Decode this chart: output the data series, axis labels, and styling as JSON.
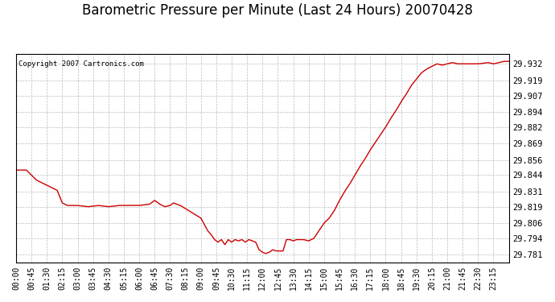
{
  "title": "Barometric Pressure per Minute (Last 24 Hours) 20070428",
  "copyright": "Copyright 2007 Cartronics.com",
  "line_color": "#cc0000",
  "background_color": "#ffffff",
  "plot_bg_color": "#ffffff",
  "grid_color": "#bbbbbb",
  "title_fontsize": 12,
  "yticks": [
    29.781,
    29.794,
    29.806,
    29.819,
    29.831,
    29.844,
    29.856,
    29.869,
    29.882,
    29.894,
    29.907,
    29.919,
    29.932
  ],
  "ylim": [
    29.775,
    29.94
  ],
  "xtick_labels": [
    "00:00",
    "00:45",
    "01:30",
    "02:15",
    "03:00",
    "03:45",
    "04:30",
    "05:15",
    "06:00",
    "06:45",
    "07:30",
    "08:15",
    "09:00",
    "09:45",
    "10:30",
    "11:15",
    "12:00",
    "12:45",
    "13:30",
    "14:15",
    "15:00",
    "15:45",
    "16:30",
    "17:15",
    "18:00",
    "18:45",
    "19:30",
    "20:15",
    "21:00",
    "21:45",
    "22:30",
    "23:15"
  ],
  "keypoints_t": [
    0,
    30,
    60,
    90,
    120,
    135,
    150,
    180,
    210,
    240,
    270,
    300,
    330,
    360,
    390,
    405,
    420,
    435,
    450,
    460,
    480,
    510,
    540,
    560,
    570,
    580,
    590,
    600,
    610,
    620,
    630,
    640,
    650,
    660,
    670,
    680,
    690,
    700,
    710,
    720,
    730,
    740,
    745,
    750,
    760,
    765,
    770,
    780,
    790,
    800,
    810,
    820,
    830,
    840,
    855,
    870,
    885,
    900,
    915,
    930,
    945,
    960,
    975,
    990,
    1005,
    1020,
    1035,
    1050,
    1065,
    1080,
    1095,
    1110,
    1125,
    1140,
    1155,
    1170,
    1185,
    1200,
    1215,
    1230,
    1245,
    1260,
    1275,
    1290,
    1320,
    1350,
    1380,
    1395,
    1410,
    1425,
    1440
  ],
  "keypoints_v": [
    29.848,
    29.848,
    29.84,
    29.836,
    29.832,
    29.822,
    29.82,
    29.82,
    29.819,
    29.82,
    29.819,
    29.82,
    29.82,
    29.82,
    29.821,
    29.824,
    29.821,
    29.819,
    29.82,
    29.822,
    29.82,
    29.815,
    29.81,
    29.8,
    29.797,
    29.793,
    29.791,
    29.793,
    29.789,
    29.793,
    29.791,
    29.793,
    29.792,
    29.793,
    29.791,
    29.793,
    29.792,
    29.791,
    29.785,
    29.783,
    29.782,
    29.783,
    29.784,
    29.785,
    29.784,
    29.784,
    29.784,
    29.784,
    29.793,
    29.793,
    29.792,
    29.793,
    29.793,
    29.793,
    29.792,
    29.794,
    29.8,
    29.806,
    29.81,
    29.816,
    29.824,
    29.831,
    29.837,
    29.844,
    29.851,
    29.857,
    29.864,
    29.87,
    29.876,
    29.882,
    29.889,
    29.895,
    29.902,
    29.908,
    29.915,
    29.92,
    29.925,
    29.928,
    29.93,
    29.932,
    29.931,
    29.932,
    29.933,
    29.932,
    29.932,
    29.932,
    29.933,
    29.932,
    29.933,
    29.934,
    29.934
  ]
}
